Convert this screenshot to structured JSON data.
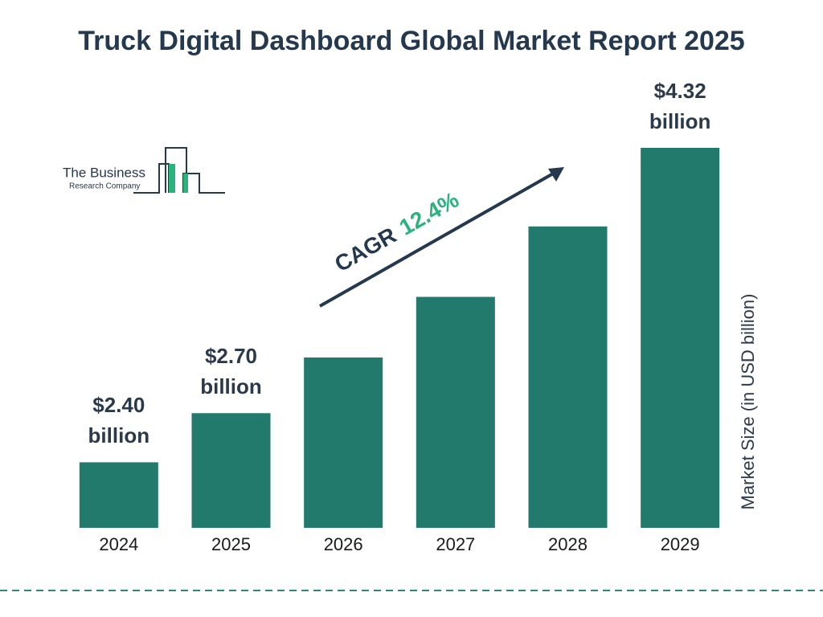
{
  "chart_data": {
    "type": "bar",
    "title": "Truck Digital Dashboard Global Market Report 2025",
    "logo": {
      "line1": "The Business",
      "line2": "Research Company"
    },
    "categories": [
      "2024",
      "2025",
      "2026",
      "2027",
      "2028",
      "2029"
    ],
    "values": [
      2.4,
      2.7,
      3.04,
      3.41,
      3.84,
      4.32
    ],
    "value_labels": [
      "$2.40 billion",
      "$2.70 billion",
      null,
      null,
      null,
      "$4.32 billion"
    ],
    "color": "#217a6b",
    "ylim": [
      2.0,
      4.32
    ],
    "ylabel": "Market Size (in USD billion)",
    "cagr_label": "CAGR",
    "cagr_value": "12.4%"
  }
}
